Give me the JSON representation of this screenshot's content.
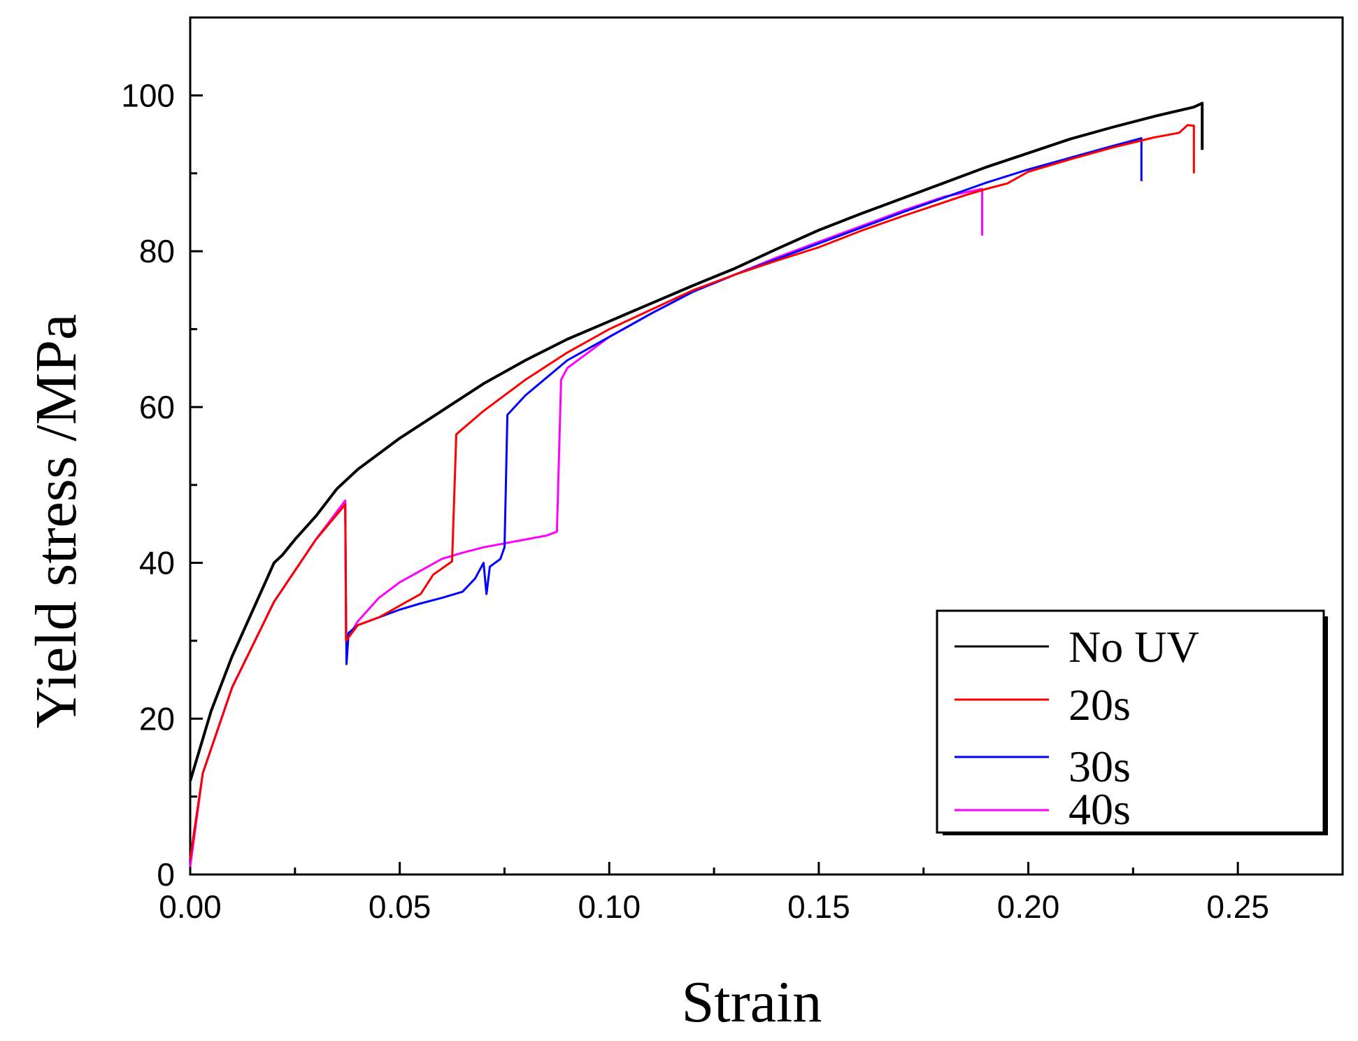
{
  "chart_data": {
    "type": "line",
    "title": "",
    "xlabel": "Strain",
    "ylabel": "Yield stress /MPa",
    "xlim": [
      0,
      0.275
    ],
    "ylim": [
      0,
      110
    ],
    "xticks": [
      0.0,
      0.05,
      0.1,
      0.15,
      0.2,
      0.25
    ],
    "xtick_labels": [
      "0.00",
      "0.05",
      "0.10",
      "0.15",
      "0.20",
      "0.25"
    ],
    "yticks": [
      0,
      20,
      40,
      60,
      80,
      100
    ],
    "ytick_labels": [
      "0",
      "20",
      "40",
      "60",
      "80",
      "100"
    ],
    "grid": false,
    "legend_position": "bottom-right",
    "series": [
      {
        "name": "No UV",
        "color": "#000000",
        "points": [
          [
            0.0,
            12
          ],
          [
            0.005,
            21
          ],
          [
            0.01,
            28
          ],
          [
            0.015,
            34
          ],
          [
            0.02,
            40
          ],
          [
            0.022,
            41
          ],
          [
            0.025,
            43
          ],
          [
            0.03,
            46
          ],
          [
            0.035,
            49.5
          ],
          [
            0.04,
            52
          ],
          [
            0.05,
            56
          ],
          [
            0.06,
            59.5
          ],
          [
            0.07,
            63
          ],
          [
            0.08,
            66
          ],
          [
            0.09,
            68.7
          ],
          [
            0.1,
            71
          ],
          [
            0.11,
            73.3
          ],
          [
            0.12,
            75.6
          ],
          [
            0.13,
            77.8
          ],
          [
            0.14,
            80.3
          ],
          [
            0.15,
            82.7
          ],
          [
            0.16,
            84.8
          ],
          [
            0.17,
            86.8
          ],
          [
            0.18,
            88.8
          ],
          [
            0.19,
            90.8
          ],
          [
            0.2,
            92.6
          ],
          [
            0.21,
            94.4
          ],
          [
            0.22,
            95.9
          ],
          [
            0.23,
            97.3
          ],
          [
            0.2395,
            98.5
          ],
          [
            0.2415,
            99.0
          ],
          [
            0.2415,
            93
          ]
        ]
      },
      {
        "name": "20s",
        "color": "#ff0000",
        "points": [
          [
            0.0,
            2
          ],
          [
            0.003,
            13
          ],
          [
            0.01,
            24
          ],
          [
            0.02,
            35
          ],
          [
            0.03,
            43
          ],
          [
            0.037,
            47.5
          ],
          [
            0.0372,
            30
          ],
          [
            0.04,
            32
          ],
          [
            0.045,
            33
          ],
          [
            0.05,
            34.5
          ],
          [
            0.055,
            36
          ],
          [
            0.058,
            38.5
          ],
          [
            0.062,
            40
          ],
          [
            0.0625,
            40.2
          ],
          [
            0.0635,
            56.5
          ],
          [
            0.07,
            59.5
          ],
          [
            0.08,
            63.5
          ],
          [
            0.09,
            67
          ],
          [
            0.1,
            70
          ],
          [
            0.11,
            72.5
          ],
          [
            0.12,
            75
          ],
          [
            0.13,
            77
          ],
          [
            0.14,
            78.8
          ],
          [
            0.15,
            80.5
          ],
          [
            0.16,
            82.6
          ],
          [
            0.17,
            84.5
          ],
          [
            0.18,
            86.3
          ],
          [
            0.185,
            87.2
          ],
          [
            0.19,
            88
          ],
          [
            0.195,
            88.7
          ],
          [
            0.2,
            90.2
          ],
          [
            0.21,
            91.8
          ],
          [
            0.22,
            93.3
          ],
          [
            0.23,
            94.6
          ],
          [
            0.236,
            95.2
          ],
          [
            0.238,
            96.2
          ],
          [
            0.2395,
            96.1
          ],
          [
            0.2395,
            90
          ]
        ]
      },
      {
        "name": "30s",
        "color": "#0000ff",
        "points": [
          [
            0.0,
            2
          ],
          [
            0.003,
            13
          ],
          [
            0.01,
            24
          ],
          [
            0.02,
            35
          ],
          [
            0.03,
            43
          ],
          [
            0.037,
            47.5
          ],
          [
            0.0373,
            27
          ],
          [
            0.0378,
            31
          ],
          [
            0.04,
            32
          ],
          [
            0.045,
            33
          ],
          [
            0.05,
            34
          ],
          [
            0.055,
            34.8
          ],
          [
            0.06,
            35.5
          ],
          [
            0.065,
            36.3
          ],
          [
            0.068,
            38
          ],
          [
            0.07,
            40
          ],
          [
            0.0707,
            36
          ],
          [
            0.0715,
            39.5
          ],
          [
            0.074,
            40.5
          ],
          [
            0.075,
            42
          ],
          [
            0.0757,
            59
          ],
          [
            0.08,
            61.5
          ],
          [
            0.09,
            66
          ],
          [
            0.1,
            69
          ],
          [
            0.11,
            72
          ],
          [
            0.12,
            74.8
          ],
          [
            0.13,
            77
          ],
          [
            0.14,
            79
          ],
          [
            0.15,
            81
          ],
          [
            0.16,
            83
          ],
          [
            0.17,
            85
          ],
          [
            0.18,
            86.9
          ],
          [
            0.19,
            88.8
          ],
          [
            0.2,
            90.5
          ],
          [
            0.21,
            92
          ],
          [
            0.22,
            93.5
          ],
          [
            0.227,
            94.5
          ],
          [
            0.227,
            89
          ]
        ]
      },
      {
        "name": "40s",
        "color": "#ff00ff",
        "points": [
          [
            0.0,
            1
          ],
          [
            0.003,
            13
          ],
          [
            0.01,
            24
          ],
          [
            0.02,
            35
          ],
          [
            0.03,
            43
          ],
          [
            0.037,
            48
          ],
          [
            0.0372,
            30
          ],
          [
            0.04,
            32.5
          ],
          [
            0.045,
            35.5
          ],
          [
            0.05,
            37.5
          ],
          [
            0.055,
            39
          ],
          [
            0.06,
            40.5
          ],
          [
            0.065,
            41.3
          ],
          [
            0.07,
            42
          ],
          [
            0.075,
            42.5
          ],
          [
            0.08,
            43
          ],
          [
            0.085,
            43.5
          ],
          [
            0.0875,
            44
          ],
          [
            0.0885,
            63.5
          ],
          [
            0.09,
            65
          ],
          [
            0.1,
            69
          ],
          [
            0.11,
            72
          ],
          [
            0.12,
            74.8
          ],
          [
            0.13,
            77
          ],
          [
            0.14,
            79.2
          ],
          [
            0.15,
            81.2
          ],
          [
            0.16,
            83.2
          ],
          [
            0.17,
            85.2
          ],
          [
            0.18,
            87
          ],
          [
            0.189,
            88
          ],
          [
            0.189,
            82
          ]
        ]
      }
    ]
  }
}
